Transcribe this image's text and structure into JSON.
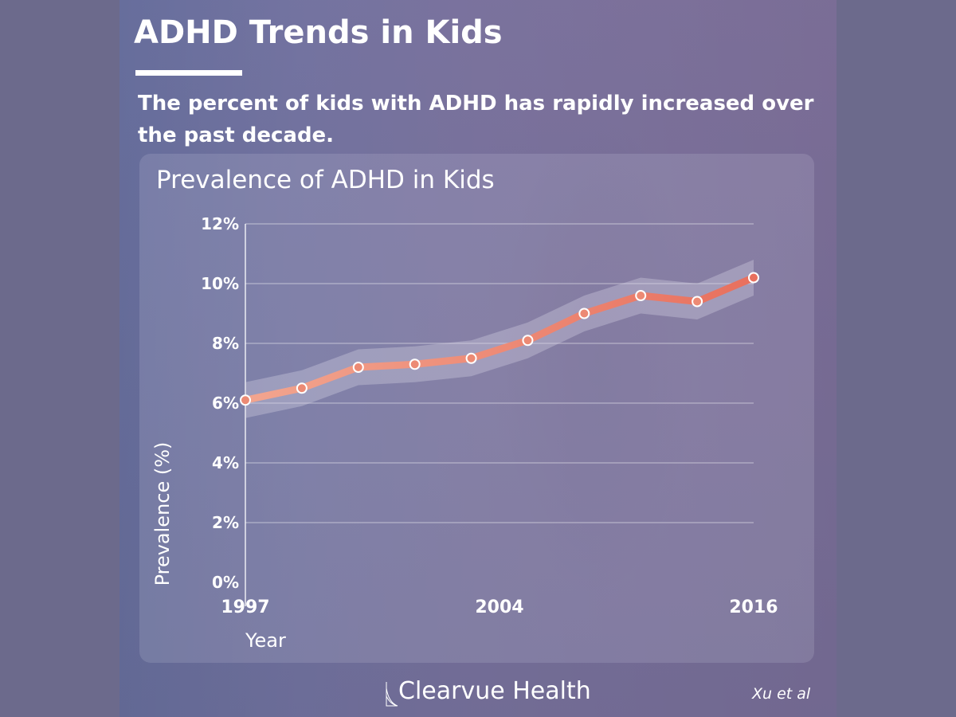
{
  "header": {
    "title": "ADHD Trends in Kids",
    "subtitle": "The percent of kids with ADHD has rapidly increased over the past decade."
  },
  "footer": {
    "brand": "Clearvue Health",
    "citation": "Xu et al"
  },
  "colors": {
    "line": "#e8705e",
    "line_start": "#f2a58f",
    "band": "#d8d4e4",
    "text": "#ffffff"
  },
  "chart_data": {
    "type": "line",
    "title": "Prevalence of ADHD in Kids",
    "xlabel": "Year",
    "ylabel": "Prevalence (%)",
    "ylim": [
      0,
      12
    ],
    "yticks": [
      "0%",
      "2%",
      "4%",
      "6%",
      "8%",
      "10%",
      "12%"
    ],
    "xticks": [
      "1997",
      "2004",
      "2016"
    ],
    "grid": true,
    "series": [
      {
        "values": [
          6.1,
          6.5,
          7.2,
          7.3,
          7.5,
          8.1,
          9.0,
          9.6,
          9.4,
          10.2
        ],
        "band": 0.6
      }
    ]
  }
}
